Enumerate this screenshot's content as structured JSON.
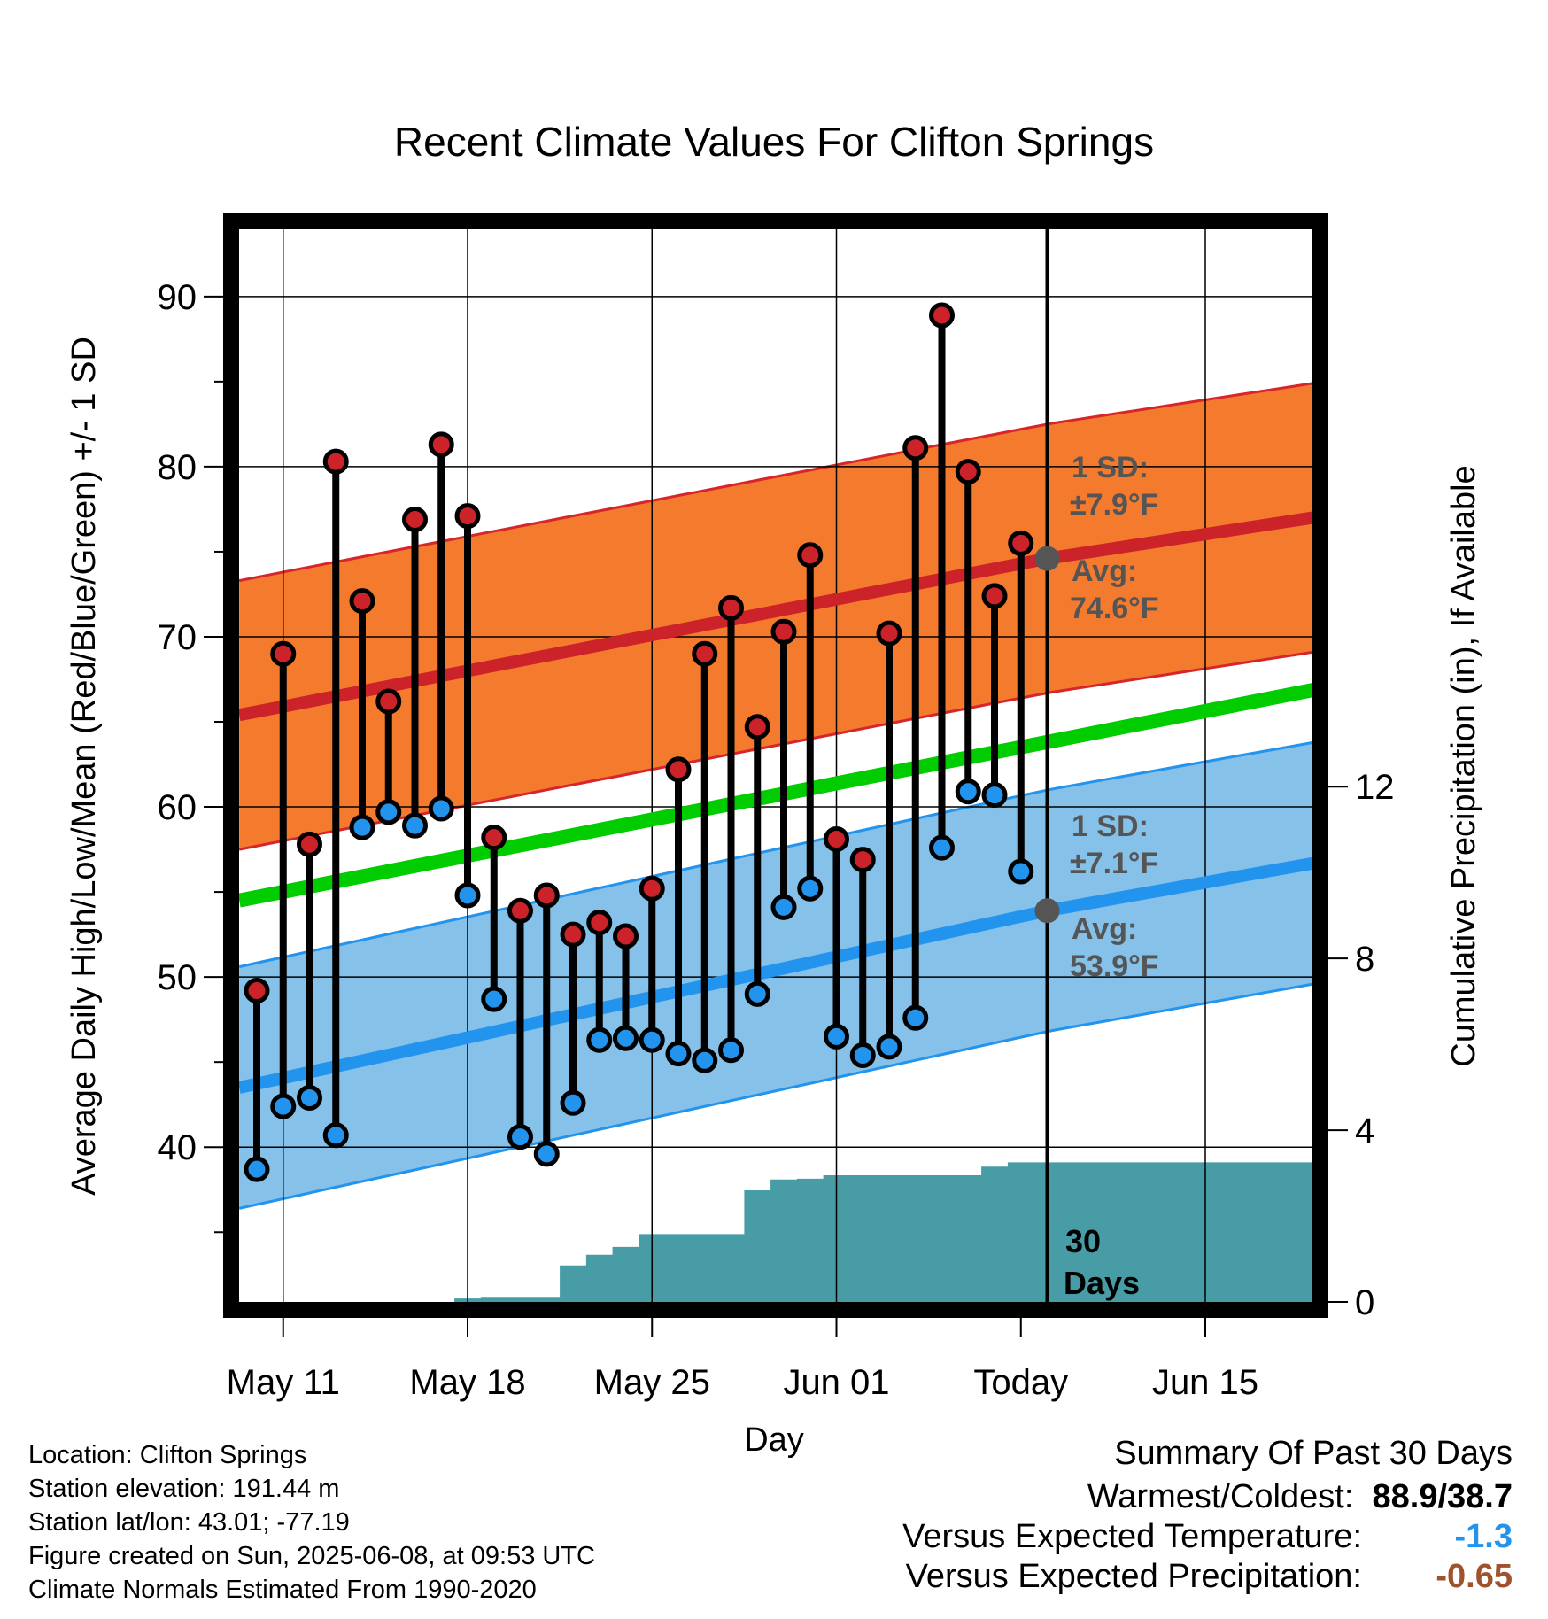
{
  "chart_data": {
    "type": "line",
    "title": "Recent Climate Values For Clifton Springs",
    "xlabel": "Day",
    "ylabel": "Average Daily High/Low/Mean (Red/Blue/Green) +/- 1 SD",
    "y2label": "Cumulative Precipitation (in), If Available",
    "ylim": [
      30.9,
      94
    ],
    "y_ticks": [
      40,
      50,
      60,
      70,
      80,
      90
    ],
    "y2lim": [
      0,
      25
    ],
    "y2_ticks": [
      0,
      4,
      8,
      12
    ],
    "x_ticks": [
      "May 11",
      "May 18",
      "May 25",
      "Jun 01",
      "Today",
      "Jun 15"
    ],
    "today_label": "Today",
    "grid": true,
    "days": [
      "May 10",
      "May 11",
      "May 12",
      "May 13",
      "May 14",
      "May 15",
      "May 16",
      "May 17",
      "May 18",
      "May 19",
      "May 20",
      "May 21",
      "May 22",
      "May 23",
      "May 24",
      "May 25",
      "May 26",
      "May 27",
      "May 28",
      "May 29",
      "May 30",
      "May 31",
      "Jun 01",
      "Jun 02",
      "Jun 03",
      "Jun 04",
      "Jun 05",
      "Jun 06",
      "Jun 07",
      "Jun 08"
    ],
    "highs": [
      49.2,
      69.0,
      57.8,
      80.3,
      72.1,
      66.2,
      76.9,
      81.3,
      77.1,
      58.2,
      53.9,
      54.8,
      52.5,
      53.2,
      52.4,
      55.2,
      62.2,
      69.0,
      71.7,
      64.7,
      70.3,
      74.8,
      58.1,
      56.9,
      70.2,
      81.1,
      88.9,
      79.7,
      72.4,
      75.5
    ],
    "lows": [
      38.7,
      42.4,
      42.9,
      40.7,
      58.8,
      59.7,
      58.9,
      59.9,
      54.8,
      48.7,
      40.6,
      39.6,
      42.6,
      46.3,
      46.4,
      46.3,
      45.5,
      45.1,
      45.7,
      49.0,
      54.1,
      55.2,
      46.5,
      45.4,
      45.9,
      47.6,
      57.6,
      60.9,
      60.7,
      56.2
    ],
    "normal_high": {
      "start": 65.4,
      "today": 74.6,
      "end": 77.1,
      "sd": 7.9
    },
    "normal_low": {
      "start": 43.5,
      "today": 53.9,
      "end": 56.8,
      "sd": 7.1
    },
    "normal_mean": {
      "start": 54.5,
      "end": 67.0
    },
    "precip_cumulative": [
      0,
      0,
      0,
      0,
      0,
      0,
      0,
      0,
      0.08,
      0.12,
      0.12,
      0.12,
      0.85,
      1.1,
      1.28,
      1.58,
      1.58,
      1.58,
      1.58,
      2.6,
      2.85,
      2.87,
      2.95,
      2.95,
      2.95,
      2.95,
      2.95,
      2.95,
      3.15,
      3.25
    ],
    "colors": {
      "high": "#cc2229",
      "low": "#2394ee",
      "mean": "#00cc00",
      "high_band": "#f47a2e",
      "low_band": "#85c1e9",
      "precip": "#489ca5"
    },
    "annotations": {
      "high_sd_label": "1 SD:",
      "high_sd_value": "±7.9°F",
      "high_avg_label": "Avg:",
      "high_avg_value": "74.6°F",
      "low_sd_label": "1 SD:",
      "low_sd_value": "±7.1°F",
      "low_avg_label": "Avg:",
      "low_avg_value": "53.9°F",
      "days_number": "30",
      "days_word": "Days"
    }
  },
  "info": {
    "location": "Location: Clifton Springs",
    "elevation": "Station elevation: 191.44 m",
    "latlon": "Station lat/lon: 43.01; -77.19",
    "created": "Figure created on Sun, 2025-06-08, at 09:53 UTC",
    "normals": "Climate Normals Estimated From 1990-2020"
  },
  "summary": {
    "title": "Summary Of Past 30 Days",
    "warmest_label": "Warmest/Coldest:",
    "warmest_value": "88.9/38.7",
    "temp_label": "Versus Expected Temperature:",
    "temp_value": "-1.3",
    "temp_color": "#2394ee",
    "precip_label": "Versus Expected Precipitation:",
    "precip_value": "-0.65",
    "precip_color": "#a0522d"
  }
}
